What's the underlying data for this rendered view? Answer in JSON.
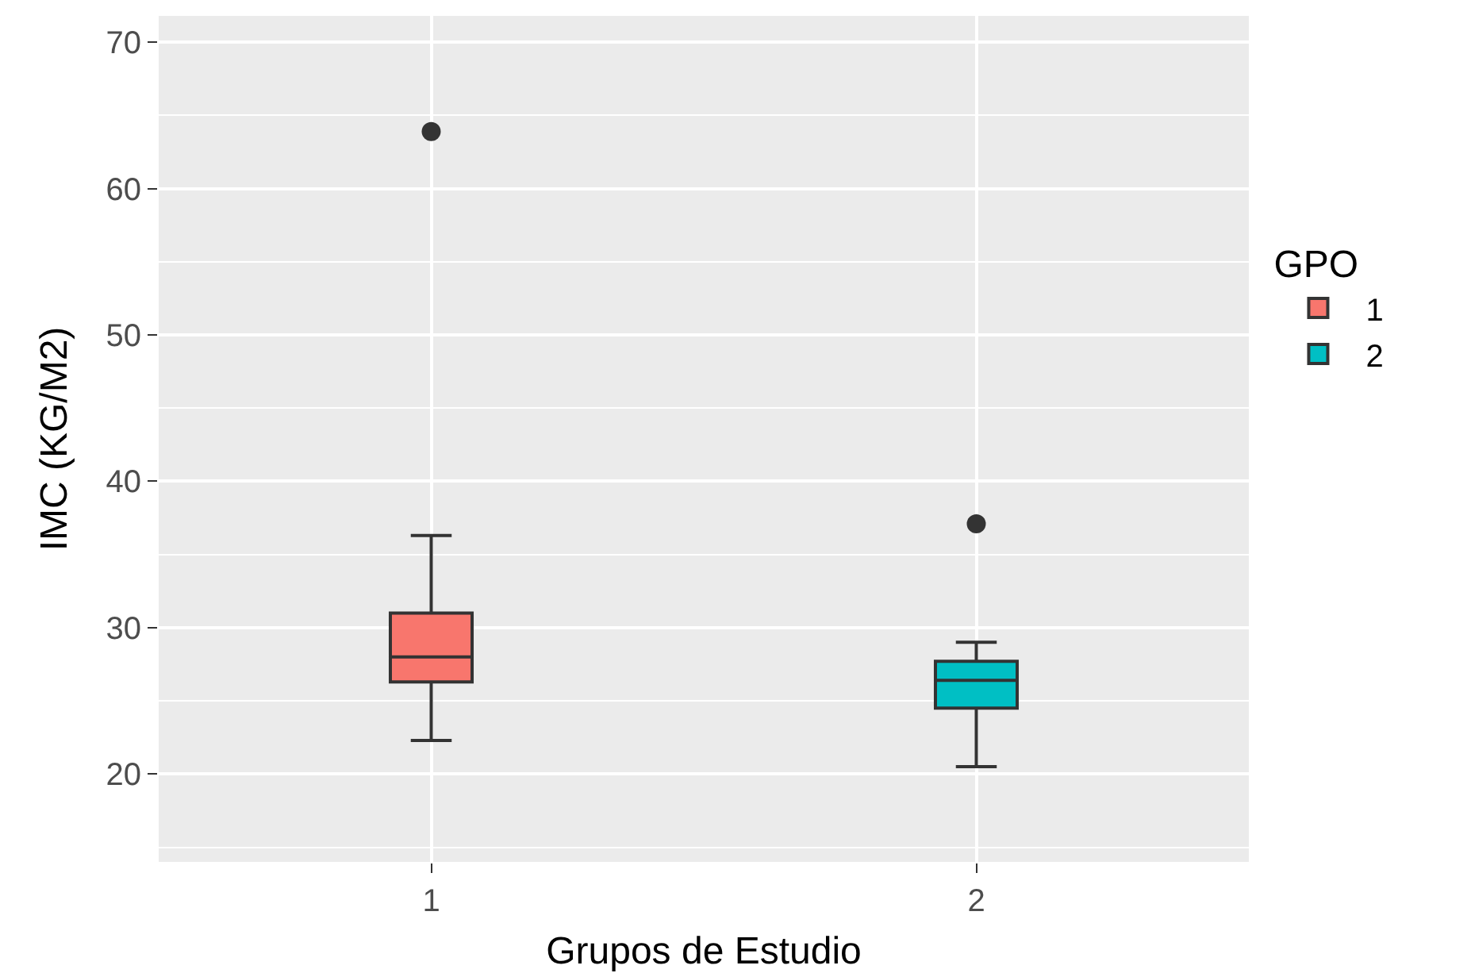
{
  "chart_data": {
    "type": "box",
    "xlabel": "Grupos de Estudio",
    "ylabel": "IMC (KG/M2)",
    "legend_title": "GPO",
    "categories": [
      "1",
      "2"
    ],
    "series": [
      {
        "name": "1",
        "color": "#f8766d",
        "boxes": [
          {
            "low": 22.3,
            "q1": 26.3,
            "median": 28.0,
            "q3": 31.0,
            "high": 36.3,
            "outliers": [
              63.9
            ]
          },
          null
        ]
      },
      {
        "name": "2",
        "color": "#00bfc4",
        "boxes": [
          null,
          {
            "low": 20.5,
            "q1": 24.5,
            "median": 26.4,
            "q3": 27.7,
            "high": 29.0,
            "outliers": [
              37.1
            ]
          }
        ]
      }
    ],
    "ylim": [
      14,
      71.8
    ],
    "yticks": [
      20,
      30,
      40,
      50,
      60,
      70
    ],
    "grid": true,
    "legend": "right"
  }
}
